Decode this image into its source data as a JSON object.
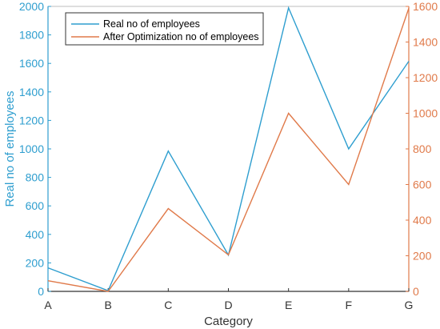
{
  "chart_data": {
    "type": "line",
    "categories": [
      "A",
      "B",
      "C",
      "D",
      "E",
      "F",
      "G"
    ],
    "xlabel": "Category",
    "ylabel": "Real  no of employees",
    "ylim": [
      0,
      2000
    ],
    "y_ticks": [
      0,
      200,
      400,
      600,
      800,
      1000,
      1200,
      1400,
      1600,
      1800,
      2000
    ],
    "y2lim": [
      0,
      1600
    ],
    "y2_ticks": [
      0,
      200,
      400,
      600,
      800,
      1000,
      1200,
      1400,
      1600
    ],
    "legend_position": "top-left",
    "grid": false,
    "series": [
      {
        "name": "Real no of employees",
        "axis": "left",
        "color": "#2e9ecf",
        "values": [
          165,
          5,
          985,
          255,
          1990,
          1000,
          1615
        ]
      },
      {
        "name": "After Optimization no of employees",
        "axis": "right",
        "color": "#e07a4a",
        "values": [
          60,
          0,
          465,
          205,
          1000,
          600,
          1590
        ]
      }
    ],
    "left_axis_color": "#2e9ecf",
    "right_axis_color": "#e07a4a"
  }
}
